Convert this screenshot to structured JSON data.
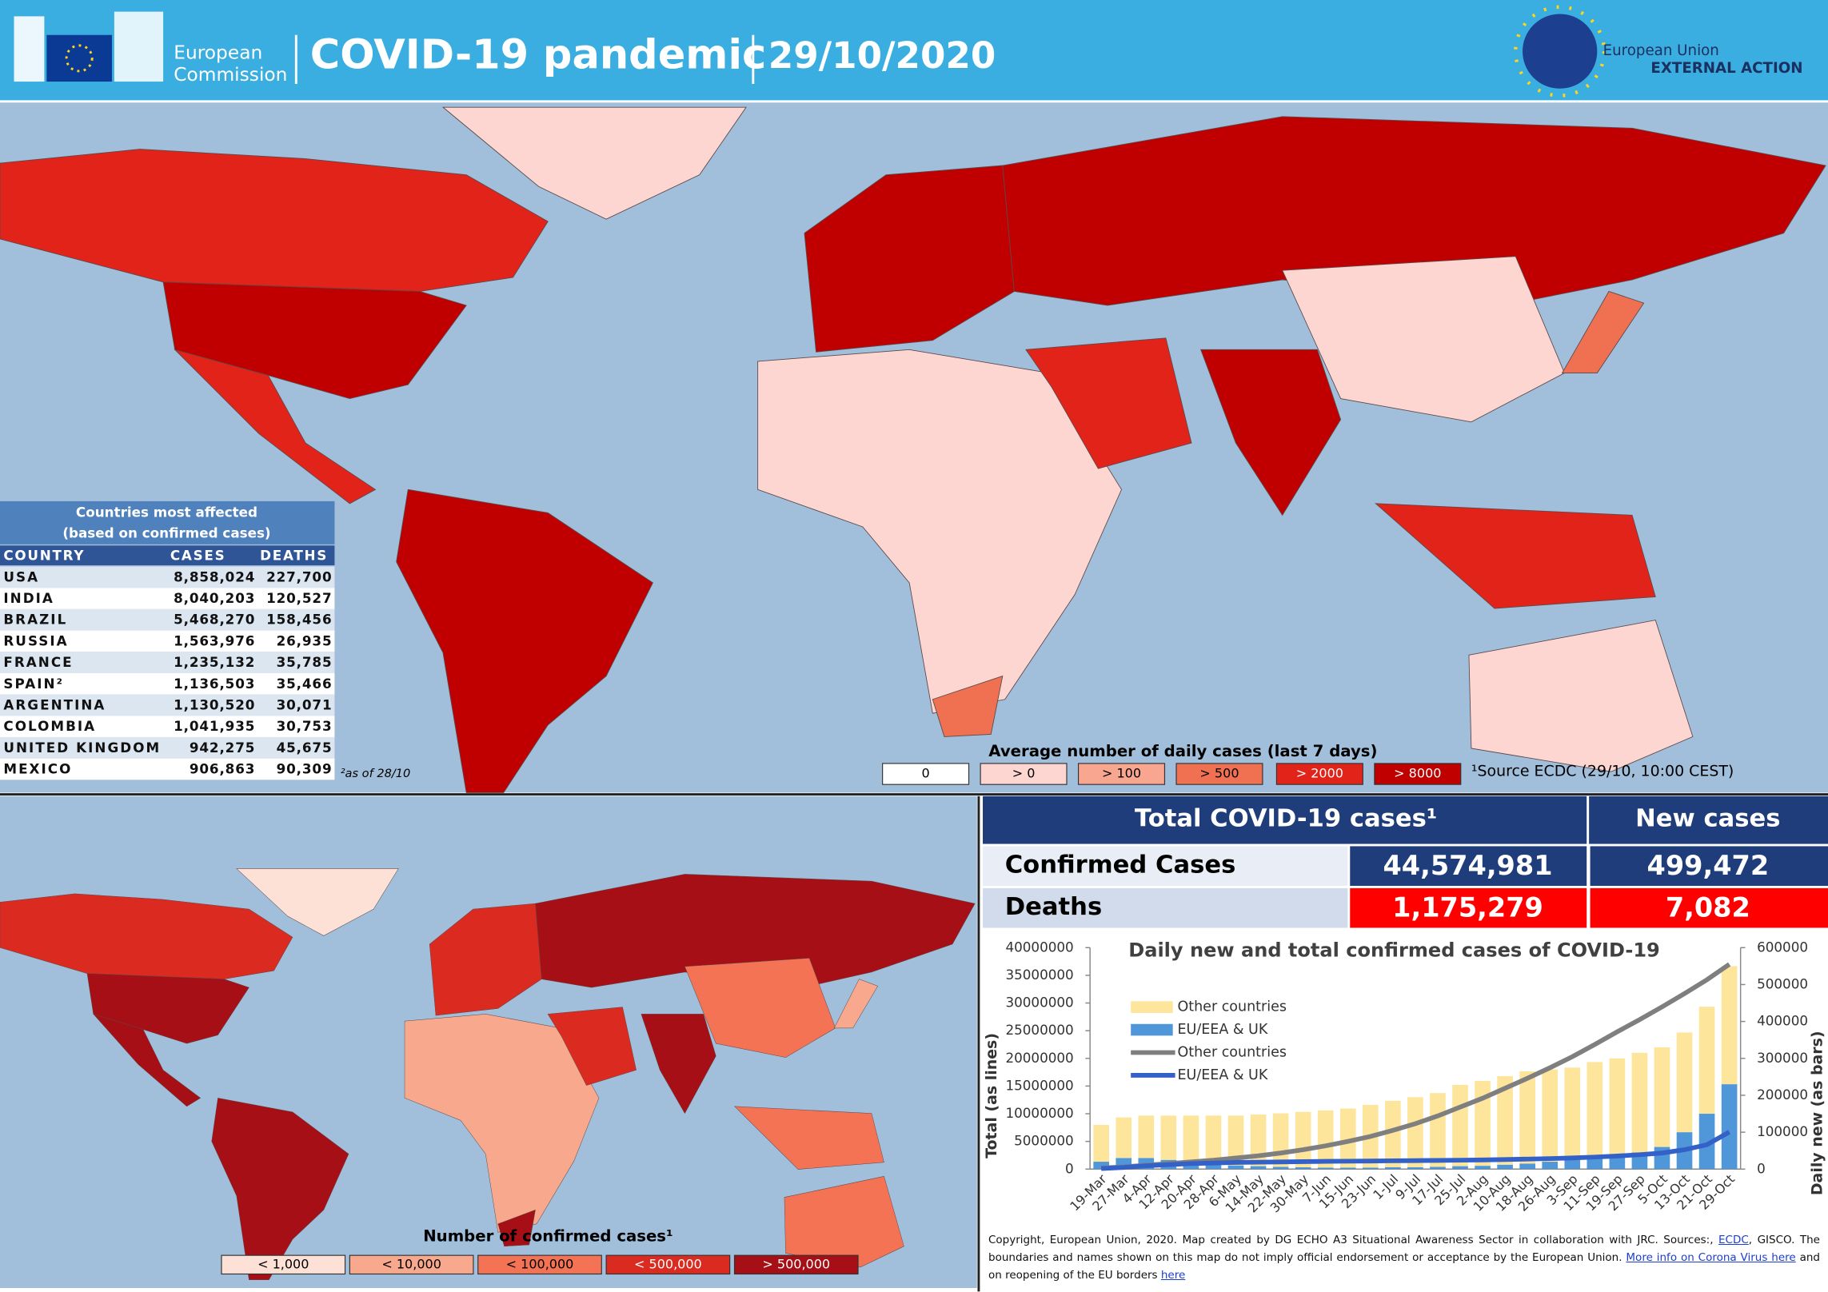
{
  "header": {
    "org_line1": "European",
    "org_line2": "Commission",
    "title": "COVID-19 pandemic",
    "date": "29/10/2020",
    "eeas_line1": "European Union",
    "eeas_line2": "EXTERNAL ACTION"
  },
  "top_map": {
    "legend_title": "Average number of daily cases (last 7 days)",
    "legend": [
      {
        "label": "0",
        "color": "#ffffff"
      },
      {
        "label": "> 0",
        "color": "#fdd6d2"
      },
      {
        "label": "> 100",
        "color": "#f9a690"
      },
      {
        "label": "> 500",
        "color": "#ef7152"
      },
      {
        "label": "> 2000",
        "color": "#e2231a"
      },
      {
        "label": "> 8000",
        "color": "#c00000"
      }
    ],
    "source": "¹Source ECDC  (29/10, 10:00 CEST)"
  },
  "table": {
    "title_line1": "Countries most affected",
    "title_line2": "(based on confirmed cases)",
    "columns": [
      "COUNTRY",
      "CASES",
      "DEATHS"
    ],
    "rows": [
      [
        "USA",
        "8,858,024",
        "227,700"
      ],
      [
        "INDIA",
        "8,040,203",
        "120,527"
      ],
      [
        "BRAZIL",
        "5,468,270",
        "158,456"
      ],
      [
        "RUSSIA",
        "1,563,976",
        "26,935"
      ],
      [
        "FRANCE",
        "1,235,132",
        "35,785"
      ],
      [
        "SPAIN²",
        "1,136,503",
        "35,466"
      ],
      [
        "ARGENTINA",
        "1,130,520",
        "30,071"
      ],
      [
        "COLOMBIA",
        "1,041,935",
        "30,753"
      ],
      [
        "UNITED KINGDOM",
        "942,275",
        "45,675"
      ],
      [
        "MEXICO",
        "906,863",
        "90,309"
      ]
    ],
    "note": "²as of 28/10"
  },
  "bottom_map": {
    "legend_title": "Number of confirmed cases¹",
    "legend": [
      {
        "label": "< 1,000",
        "color": "#fde1d6"
      },
      {
        "label": "< 10,000",
        "color": "#f8a98d"
      },
      {
        "label": "< 100,000",
        "color": "#f47355"
      },
      {
        "label": "< 500,000",
        "color": "#db2a20"
      },
      {
        "label": "> 500,000",
        "color": "#a50f15"
      }
    ]
  },
  "summary": {
    "header": [
      "Total COVID-19 cases¹",
      "New cases"
    ],
    "rows": [
      [
        "Confirmed Cases",
        "44,574,981",
        "499,472"
      ],
      [
        "Deaths",
        "1,175,279",
        "7,082"
      ]
    ]
  },
  "chart_data": {
    "type": "combo",
    "title": "Daily new and total confirmed cases of COVID-19",
    "ylabel": "Total (as lines)",
    "y2label": "Daily new (as bars)",
    "categories": [
      "19-Mar",
      "27-Mar",
      "4-Apr",
      "12-Apr",
      "20-Apr",
      "28-Apr",
      "6-May",
      "14-May",
      "22-May",
      "30-May",
      "7-Jun",
      "15-Jun",
      "23-Jun",
      "1-Jul",
      "9-Jul",
      "17-Jul",
      "25-Jul",
      "2-Aug",
      "10-Aug",
      "18-Aug",
      "26-Aug",
      "3-Sep",
      "11-Sep",
      "19-Sep",
      "27-Sep",
      "5-Oct",
      "13-Oct",
      "21-Oct",
      "29-Oct"
    ],
    "series": [
      {
        "name": "Other countries",
        "type": "bar",
        "axis": "y2",
        "color": "#fde59b",
        "values": [
          100000,
          110000,
          115000,
          120000,
          125000,
          130000,
          135000,
          140000,
          145000,
          150000,
          155000,
          160000,
          170000,
          180000,
          190000,
          200000,
          220000,
          230000,
          240000,
          250000,
          250000,
          250000,
          260000,
          260000,
          270000,
          270000,
          270000,
          290000,
          320000
        ]
      },
      {
        "name": "EU/EEA & UK",
        "type": "bar",
        "axis": "y2",
        "color": "#4f97d9",
        "values": [
          20000,
          30000,
          30000,
          25000,
          20000,
          15000,
          10000,
          8000,
          6000,
          5000,
          4000,
          4000,
          4000,
          5000,
          5000,
          6000,
          8000,
          9000,
          12000,
          15000,
          20000,
          25000,
          30000,
          40000,
          45000,
          60000,
          100000,
          150000,
          230000
        ]
      },
      {
        "name": "Other countries",
        "type": "line",
        "color": "#7f7f7f",
        "values": [
          200000,
          400000,
          700000,
          1000000,
          1300000,
          1600000,
          2000000,
          2400000,
          2900000,
          3500000,
          4200000,
          5000000,
          5900000,
          7000000,
          8200000,
          9600000,
          11200000,
          12800000,
          14600000,
          16400000,
          18300000,
          20300000,
          22500000,
          24800000,
          27000000,
          29300000,
          31700000,
          34200000,
          37000000
        ]
      },
      {
        "name": "EU/EEA & UK",
        "type": "line",
        "color": "#3461c8",
        "values": [
          100000,
          300000,
          600000,
          800000,
          1000000,
          1100000,
          1200000,
          1250000,
          1300000,
          1350000,
          1400000,
          1430000,
          1460000,
          1500000,
          1530000,
          1570000,
          1610000,
          1660000,
          1730000,
          1810000,
          1900000,
          2020000,
          2170000,
          2360000,
          2600000,
          2900000,
          3500000,
          4400000,
          6700000
        ]
      }
    ],
    "ylim": [
      0,
      40000000
    ],
    "yticks": [
      0,
      5000000,
      10000000,
      15000000,
      20000000,
      25000000,
      30000000,
      35000000,
      40000000
    ],
    "y2lim": [
      0,
      600000
    ],
    "y2ticks": [
      0,
      100000,
      200000,
      300000,
      400000,
      500000,
      600000
    ]
  },
  "footer": {
    "text1": "Copyright, European Union, 2020. Map created by DG ECHO A3 Situational Awareness Sector in collaboration with JRC. Sources:, ",
    "link1": "ECDC",
    "text2": ", GISCO. The boundaries and names shown on this map do not imply official endorsement or acceptance by the European Union. ",
    "link2": "More info on Corona Virus here",
    "text3": " and on reopening of the EU borders ",
    "link3": "here"
  }
}
